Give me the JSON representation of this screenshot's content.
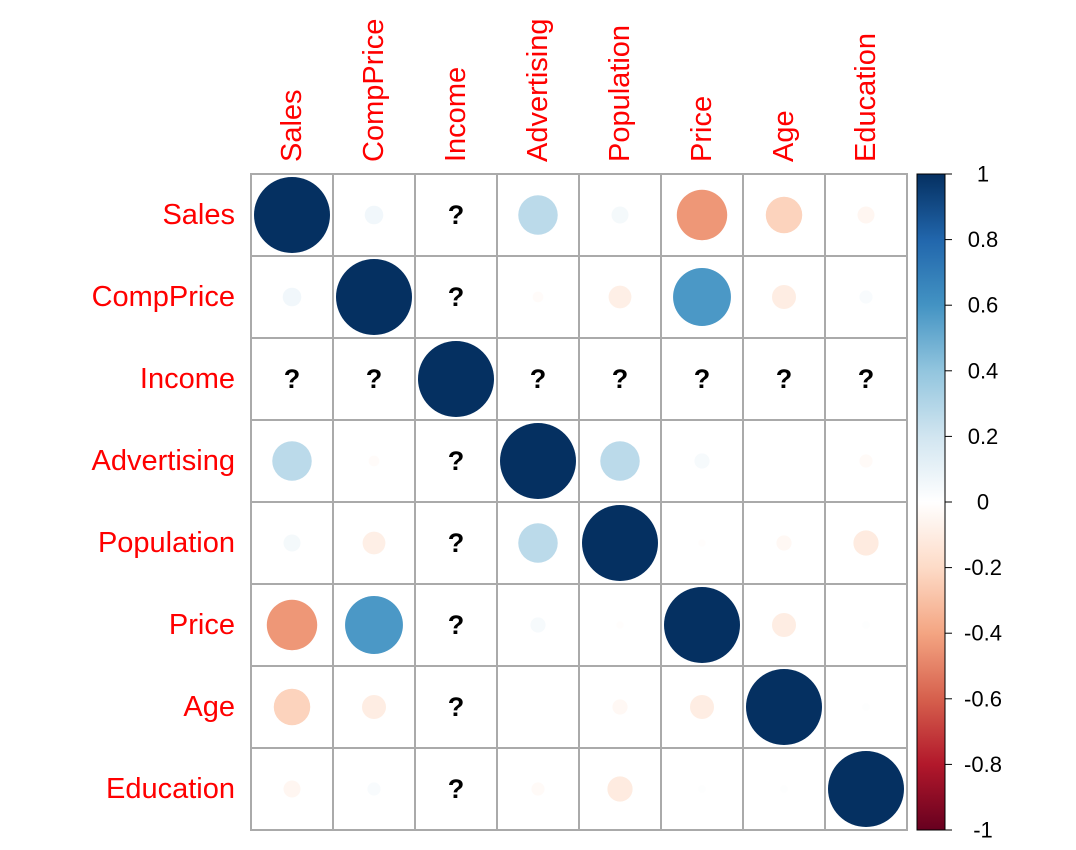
{
  "chart_data": {
    "type": "heatmap",
    "variables": [
      "Sales",
      "CompPrice",
      "Income",
      "Advertising",
      "Population",
      "Price",
      "Age",
      "Education"
    ],
    "matrix": [
      [
        1,
        0.06,
        null,
        0.27,
        0.05,
        -0.44,
        -0.23,
        -0.05
      ],
      [
        0.06,
        1,
        null,
        -0.02,
        -0.09,
        0.58,
        -0.1,
        0.03
      ],
      [
        null,
        null,
        1,
        null,
        null,
        null,
        null,
        null
      ],
      [
        0.27,
        -0.02,
        null,
        1,
        0.27,
        0.04,
        0.0,
        -0.03
      ],
      [
        0.05,
        -0.09,
        null,
        0.27,
        1,
        -0.01,
        -0.04,
        -0.11
      ],
      [
        -0.44,
        0.58,
        null,
        0.04,
        -0.01,
        1,
        -0.1,
        0.01
      ],
      [
        -0.23,
        -0.1,
        null,
        0.0,
        -0.04,
        -0.1,
        1,
        0.01
      ],
      [
        -0.05,
        0.03,
        null,
        -0.03,
        -0.11,
        0.01,
        0.01,
        1
      ]
    ],
    "missing_symbol": "?",
    "colorbar": {
      "range": [
        -1,
        1
      ],
      "ticks": [
        "1",
        "0.8",
        "0.6",
        "0.4",
        "0.2",
        "0",
        "-0.2",
        "-0.4",
        "-0.6",
        "-0.8",
        "-1"
      ],
      "tick_values": [
        1,
        0.8,
        0.6,
        0.4,
        0.2,
        0,
        -0.2,
        -0.4,
        -0.6,
        -0.8,
        -1
      ],
      "gradient": [
        "#67001F",
        "#B2182B",
        "#D6604D",
        "#F4A582",
        "#FDDBC7",
        "#FFFFFF",
        "#D1E5F0",
        "#92C5DE",
        "#4393C3",
        "#2166AC",
        "#053061"
      ]
    },
    "label_color": "#FF0000",
    "grid_color": "#AAAAAA"
  }
}
